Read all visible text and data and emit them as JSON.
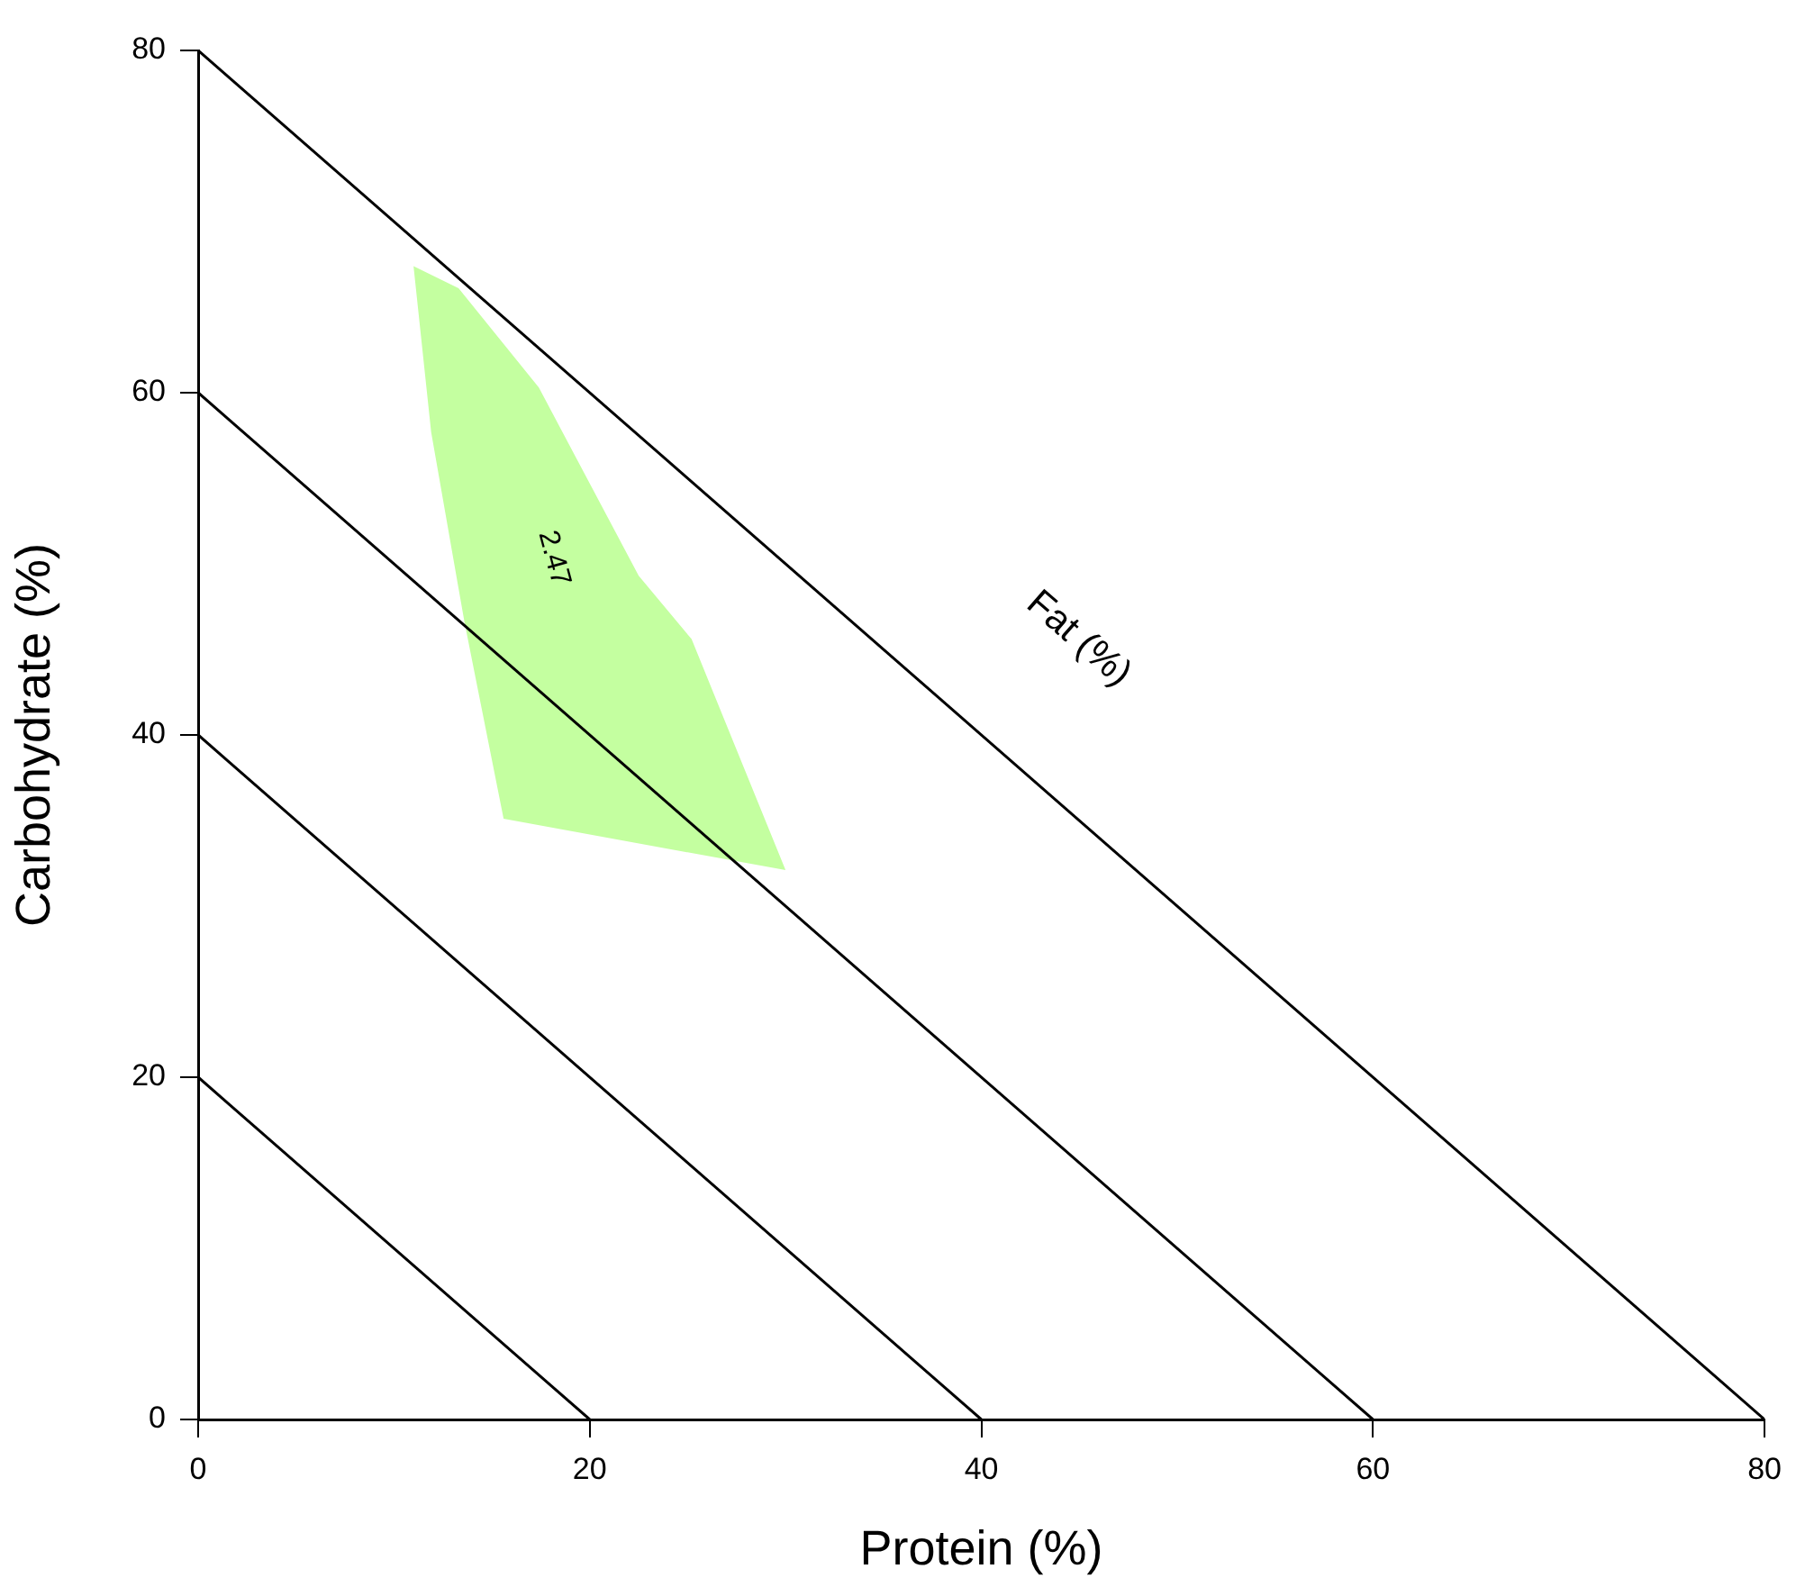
{
  "chart_data": {
    "type": "line",
    "xlabel": "Protein (%)",
    "ylabel": "Carbohydrate (%)",
    "xlim": [
      0,
      80
    ],
    "ylim": [
      0,
      80
    ],
    "xticks": [
      0,
      20,
      40,
      60,
      80
    ],
    "yticks": [
      0,
      20,
      40,
      60,
      80
    ],
    "grid": false,
    "legend": false,
    "marker": "none",
    "series": [
      {
        "color": "#000000",
        "x": [
          0,
          20
        ],
        "values": [
          20,
          0
        ]
      },
      {
        "color": "#000000",
        "x": [
          0,
          40
        ],
        "values": [
          40,
          0
        ]
      },
      {
        "color": "#000000",
        "x": [
          0,
          60
        ],
        "values": [
          60,
          0
        ]
      },
      {
        "color": "#000000",
        "x": [
          0,
          80
        ],
        "values": [
          80,
          0
        ]
      },
      {
        "type": "area",
        "color": "#c4ffa0",
        "x": [
          11.0,
          13.3,
          17.4,
          22.5,
          25.2,
          30.0,
          15.6,
          13.6,
          11.9,
          11.0
        ],
        "values": [
          67.4,
          66.1,
          60.3,
          49.3,
          45.6,
          32.1,
          35.1,
          46.6,
          57.7,
          67.4
        ]
      }
    ],
    "annotations": [
      "2.47",
      "Fat (%)"
    ]
  }
}
